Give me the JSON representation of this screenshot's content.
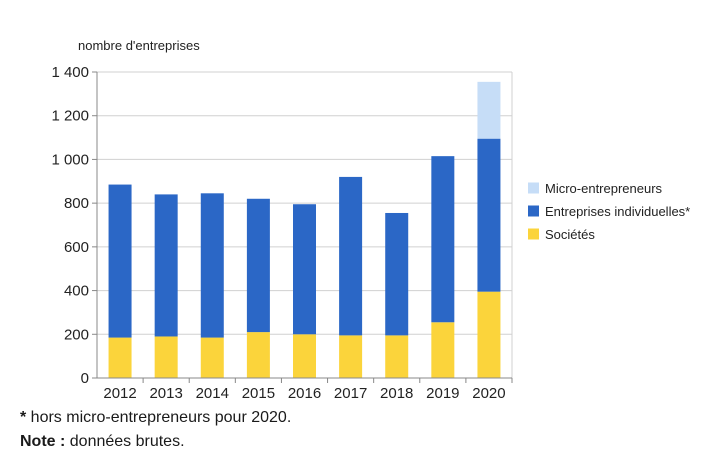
{
  "chart_data": {
    "type": "bar",
    "stacked": true,
    "ylabel": "nombre d'entreprises",
    "ylim": [
      0,
      1400
    ],
    "yticks": [
      0,
      200,
      400,
      600,
      800,
      1000,
      1200,
      1400
    ],
    "ytick_labels": [
      "0",
      "200",
      "400",
      "600",
      "800",
      "1 000",
      "1 200",
      "1 400"
    ],
    "categories": [
      "2012",
      "2013",
      "2014",
      "2015",
      "2016",
      "2017",
      "2018",
      "2019",
      "2020"
    ],
    "series": [
      {
        "name": "Sociétés",
        "color": "#fbd43b",
        "values": [
          185,
          190,
          185,
          210,
          200,
          195,
          195,
          255,
          395
        ]
      },
      {
        "name": "Entreprises individuelles*",
        "color": "#2b67c6",
        "values": [
          700,
          650,
          660,
          610,
          595,
          725,
          560,
          760,
          700
        ]
      },
      {
        "name": "Micro-entrepreneurs",
        "color": "#c6ddf7",
        "values": [
          0,
          0,
          0,
          0,
          0,
          0,
          0,
          0,
          260
        ]
      }
    ],
    "legend": {
      "position": "right",
      "order": [
        "Micro-entrepreneurs",
        "Entreprises individuelles*",
        "Sociétés"
      ]
    },
    "grid": true
  },
  "footnote": {
    "star": "*",
    "text": " hors micro-entrepreneurs pour 2020."
  },
  "note": {
    "label": "Note :",
    "text": " données brutes."
  }
}
